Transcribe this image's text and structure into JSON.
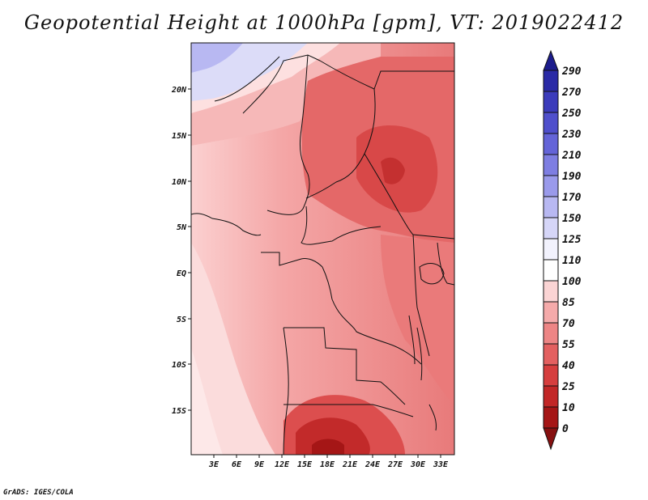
{
  "title": "Geopotential Height at 1000hPa [gpm], VT: 2019022412",
  "footer": "GrADS: IGES/COLA",
  "map": {
    "lat_labels": [
      "20N",
      "15N",
      "10N",
      "5N",
      "EQ",
      "5S",
      "10S",
      "15S"
    ],
    "lon_labels": [
      "3E",
      "6E",
      "9E",
      "12E",
      "15E",
      "18E",
      "21E",
      "24E",
      "27E",
      "30E",
      "33E"
    ]
  },
  "colorbar": {
    "levels": [
      "290",
      "270",
      "250",
      "230",
      "210",
      "190",
      "170",
      "150",
      "125",
      "110",
      "100",
      "85",
      "70",
      "55",
      "40",
      "25",
      "10",
      "0"
    ],
    "colors": [
      "#1c1c8c",
      "#2a2aa6",
      "#3b3bbb",
      "#4f4fcc",
      "#6464d8",
      "#7e7ee2",
      "#9a9aeb",
      "#b8b8f2",
      "#d6d6f8",
      "#f2f2fd",
      "#ffffff",
      "#fbd4d4",
      "#f5aaaa",
      "#ed8585",
      "#e36060",
      "#d63e3e",
      "#c22727",
      "#a51616",
      "#861010"
    ]
  }
}
